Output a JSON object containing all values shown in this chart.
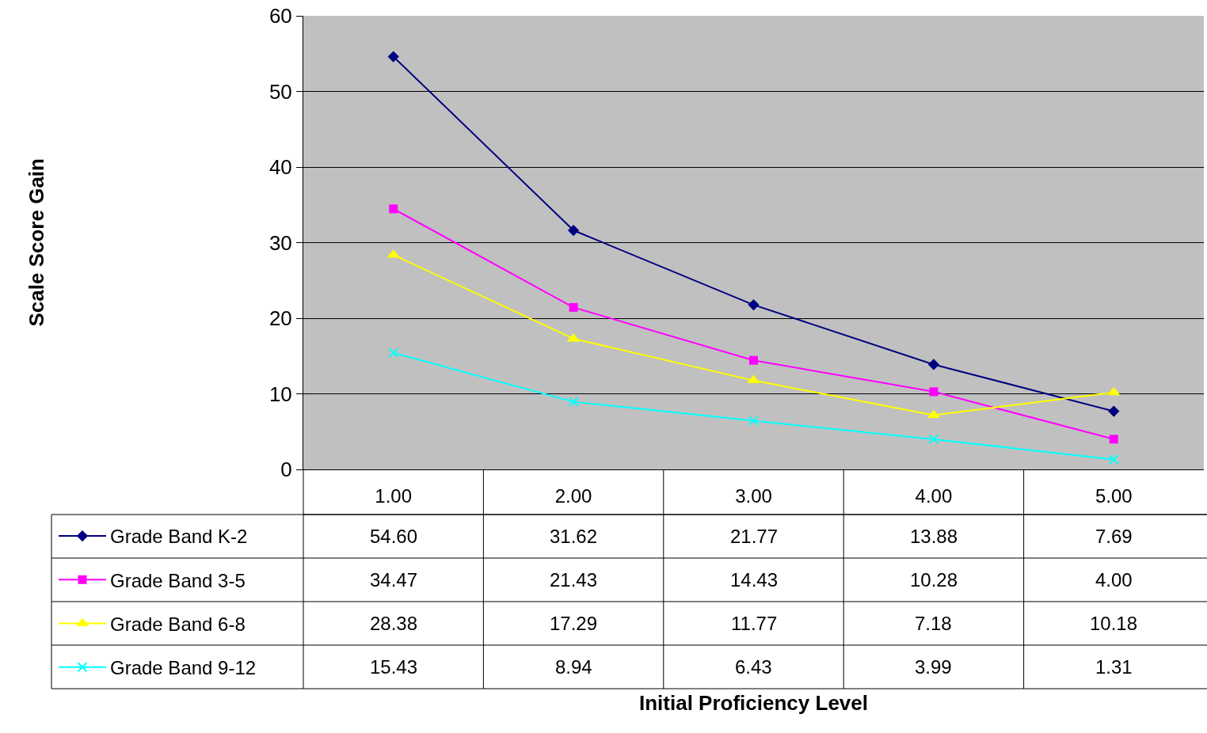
{
  "chart_data": {
    "type": "line",
    "annotations": [
      "Initial Proficiency Level",
      "Scale Score Gain"
    ],
    "categories": [
      "1.00",
      "2.00",
      "3.00",
      "4.00",
      "5.00"
    ],
    "series": [
      {
        "name": "Grade Band K-2",
        "color": "#000080",
        "marker": "diamond",
        "values": [
          54.6,
          31.62,
          21.77,
          13.88,
          7.69
        ],
        "value_labels": [
          "54.60",
          "31.62",
          "21.77",
          "13.88",
          "7.69"
        ]
      },
      {
        "name": "Grade Band 3-5",
        "color": "#ff00ff",
        "marker": "square",
        "values": [
          34.47,
          21.43,
          14.43,
          10.28,
          4.0
        ],
        "value_labels": [
          "34.47",
          "21.43",
          "14.43",
          "10.28",
          "4.00"
        ]
      },
      {
        "name": "Grade Band 6-8",
        "color": "#ffff00",
        "marker": "triangle",
        "values": [
          28.38,
          17.29,
          11.77,
          7.18,
          10.18
        ],
        "value_labels": [
          "28.38",
          "17.29",
          "11.77",
          "7.18",
          "10.18"
        ]
      },
      {
        "name": "Grade Band 9-12",
        "color": "#00ffff",
        "marker": "cross",
        "values": [
          15.43,
          8.94,
          6.43,
          3.99,
          1.31
        ],
        "value_labels": [
          "15.43",
          "8.94",
          "6.43",
          "3.99",
          "1.31"
        ]
      }
    ],
    "ylim": [
      0,
      60
    ],
    "yticks": [
      0,
      10,
      20,
      30,
      40,
      50,
      60
    ],
    "grid": "y",
    "legend": "bottom left",
    "line_style": "solid"
  }
}
